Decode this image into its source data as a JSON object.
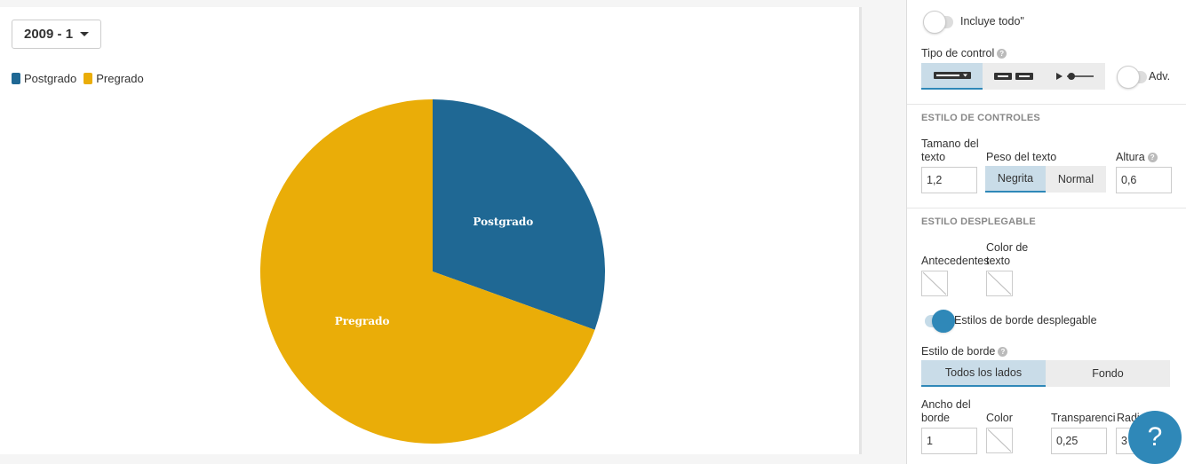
{
  "year_selector": {
    "value": "2009 - 1"
  },
  "colors": {
    "postgrado": "#1f6894",
    "pregrado": "#eaad08",
    "accent": "#2f88b8"
  },
  "chart_data": {
    "type": "pie",
    "categories": [
      "Postgrado",
      "Pregrado"
    ],
    "values": [
      30.5,
      69.5
    ],
    "legend": [
      "Postgrado",
      "Pregrado"
    ],
    "legend_position": "top-left",
    "data_labels": [
      "Postgrado",
      "Pregrado"
    ]
  },
  "panel": {
    "includes_all_label": "Incluye todo\"",
    "control_type_label": "Tipo de control",
    "control_type_options": [
      "dropdown-icon",
      "buttons-icon",
      "slider-icon"
    ],
    "adv_label": "Adv.",
    "controls_style_heading": "ESTILO DE CONTROLES",
    "text_size_label": "Tamano del texto",
    "text_size_value": "1,2",
    "text_weight_label": "Peso del texto",
    "weight_bold": "Negrita",
    "weight_normal": "Normal",
    "height_label": "Altura",
    "height_value": "0,6",
    "dropdown_style_heading": "ESTILO DESPLEGABLE",
    "background_label": "Antecedentes",
    "text_color_label": "Color de texto",
    "border_styles_toggle_label": "Estilos de borde desplegable",
    "border_style_label": "Estilo de borde",
    "border_all_sides": "Todos los lados",
    "border_background": "Fondo",
    "border_width_label": "Ancho del borde",
    "border_width_value": "1",
    "color_label": "Color",
    "transparency_label": "Transparencia",
    "transparency_value": "0,25",
    "radius_label": "Radi",
    "radius_value": "3"
  },
  "help_button": {
    "label": "?"
  }
}
